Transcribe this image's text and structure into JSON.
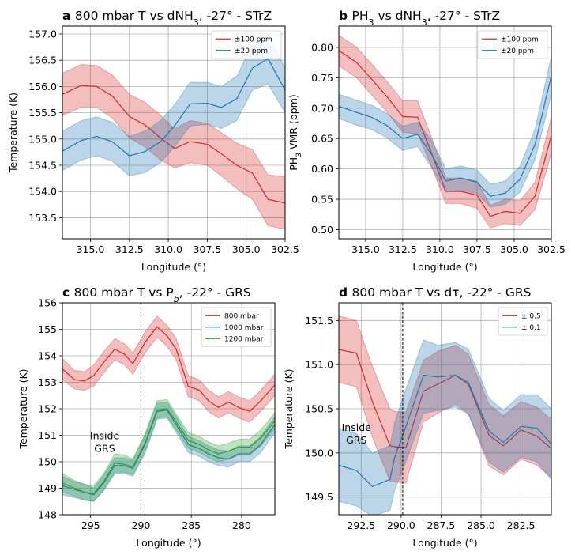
{
  "colors": {
    "red": "#d62728",
    "blue": "#1f77b4",
    "green": "#2ca02c",
    "grid": "#b0b0b0"
  },
  "chart_data": [
    {
      "type": "line",
      "panel": "a",
      "title_letter": "a",
      "title_parts": [
        {
          "t": "800 mbar T vs dNH"
        },
        {
          "t": "3",
          "sub": true
        },
        {
          "t": ", -27° - STrZ"
        }
      ],
      "xlabel": "Longitude (°)",
      "ylabel": "Temperature (K)",
      "xlim": [
        316.8,
        302.5
      ],
      "ylim": [
        153.1,
        157.15
      ],
      "xticks": [
        315.0,
        312.5,
        310.0,
        307.5,
        305.0,
        302.5
      ],
      "xtick_labels": [
        "315.0",
        "312.5",
        "310.0",
        "307.5",
        "305.0",
        "302.5"
      ],
      "yticks": [
        153.5,
        154.0,
        154.5,
        155.0,
        155.5,
        156.0,
        156.5,
        157.0
      ],
      "ytick_labels": [
        "153.5",
        "154.0",
        "154.5",
        "155.0",
        "155.5",
        "156.0",
        "156.5",
        "157.0"
      ],
      "legend": "upper right",
      "x": [
        316.8,
        315.6,
        314.6,
        313.6,
        312.5,
        311.5,
        310.5,
        309.6,
        308.6,
        307.5,
        306.6,
        305.6,
        304.6,
        303.6,
        302.5
      ],
      "series": [
        {
          "name": "±100 ppm",
          "color": "red",
          "y": [
            155.85,
            156.02,
            156.0,
            155.82,
            155.43,
            155.27,
            155.02,
            154.82,
            154.95,
            154.9,
            154.72,
            154.5,
            154.35,
            153.85,
            153.78
          ],
          "lo": [
            155.45,
            155.6,
            155.6,
            155.4,
            155.02,
            154.85,
            154.6,
            154.45,
            154.55,
            154.5,
            154.3,
            154.05,
            153.85,
            153.35,
            153.28
          ],
          "hi": [
            156.25,
            156.42,
            156.4,
            156.22,
            155.85,
            155.7,
            155.45,
            155.2,
            155.35,
            155.3,
            155.12,
            154.92,
            154.8,
            154.32,
            154.28
          ]
        },
        {
          "name": "±20 ppm",
          "color": "blue",
          "y": [
            154.77,
            154.97,
            155.05,
            154.95,
            154.68,
            154.76,
            154.95,
            155.25,
            155.67,
            155.68,
            155.6,
            155.77,
            156.35,
            156.53,
            155.93
          ],
          "lo": [
            154.4,
            154.6,
            154.68,
            154.58,
            154.3,
            154.36,
            154.55,
            154.85,
            155.25,
            155.28,
            155.2,
            155.35,
            155.93,
            156.05,
            155.5
          ],
          "hi": [
            155.15,
            155.35,
            155.42,
            155.32,
            155.05,
            155.15,
            155.35,
            155.65,
            156.08,
            156.08,
            156.0,
            156.2,
            156.8,
            157.0,
            156.35
          ]
        }
      ]
    },
    {
      "type": "line",
      "panel": "b",
      "title_letter": "b",
      "title_parts": [
        {
          "t": "PH"
        },
        {
          "t": "3",
          "sub": true
        },
        {
          "t": " vs dNH"
        },
        {
          "t": "3",
          "sub": true
        },
        {
          "t": ", -27° - STrZ"
        }
      ],
      "xlabel": "Longitude (°)",
      "ylabel_parts": [
        {
          "t": "PH"
        },
        {
          "t": "3",
          "sub": true
        },
        {
          "t": " VMR (ppm)"
        }
      ],
      "xlim": [
        316.8,
        302.5
      ],
      "ylim": [
        0.485,
        0.835
      ],
      "xticks": [
        315.0,
        312.5,
        310.0,
        307.5,
        305.0,
        302.5
      ],
      "xtick_labels": [
        "315.0",
        "312.5",
        "310.0",
        "307.5",
        "305.0",
        "302.5"
      ],
      "yticks": [
        0.5,
        0.55,
        0.6,
        0.65,
        0.7,
        0.75,
        0.8
      ],
      "ytick_labels": [
        "0.50",
        "0.55",
        "0.60",
        "0.65",
        "0.70",
        "0.75",
        "0.80"
      ],
      "legend": "upper right",
      "x": [
        316.8,
        315.6,
        314.6,
        313.6,
        312.5,
        311.5,
        310.5,
        309.6,
        308.6,
        307.5,
        306.6,
        305.6,
        304.6,
        303.6,
        302.5
      ],
      "series": [
        {
          "name": "±100 ppm",
          "color": "red",
          "y": [
            0.795,
            0.775,
            0.748,
            0.72,
            0.686,
            0.685,
            0.622,
            0.563,
            0.563,
            0.557,
            0.522,
            0.53,
            0.527,
            0.555,
            0.655
          ],
          "lo": [
            0.77,
            0.75,
            0.722,
            0.695,
            0.66,
            0.658,
            0.6,
            0.543,
            0.543,
            0.535,
            0.503,
            0.51,
            0.507,
            0.533,
            0.625
          ],
          "hi": [
            0.82,
            0.8,
            0.773,
            0.745,
            0.712,
            0.712,
            0.648,
            0.585,
            0.585,
            0.58,
            0.54,
            0.55,
            0.548,
            0.578,
            0.685
          ]
        },
        {
          "name": "±20 ppm",
          "color": "blue",
          "y": [
            0.703,
            0.693,
            0.685,
            0.672,
            0.65,
            0.657,
            0.622,
            0.58,
            0.585,
            0.578,
            0.555,
            0.56,
            0.583,
            0.64,
            0.753
          ],
          "lo": [
            0.683,
            0.672,
            0.665,
            0.652,
            0.63,
            0.637,
            0.6,
            0.562,
            0.565,
            0.56,
            0.537,
            0.542,
            0.562,
            0.615,
            0.723
          ],
          "hi": [
            0.723,
            0.713,
            0.705,
            0.692,
            0.67,
            0.677,
            0.645,
            0.6,
            0.605,
            0.598,
            0.575,
            0.58,
            0.605,
            0.665,
            0.785
          ]
        }
      ]
    },
    {
      "type": "line",
      "panel": "c",
      "title_letter": "c",
      "title_parts": [
        {
          "t": "800 mbar T vs P"
        },
        {
          "t": "b",
          "sub": true,
          "italic": true
        },
        {
          "t": ", -22° - GRS"
        }
      ],
      "xlabel": "Longitude (°)",
      "ylabel": "Temperature (K)",
      "xlim": [
        297.8,
        276.7
      ],
      "ylim": [
        148,
        156
      ],
      "xticks": [
        295,
        290,
        285,
        280
      ],
      "xtick_labels": [
        "295",
        "290",
        "285",
        "280"
      ],
      "yticks": [
        148,
        149,
        150,
        151,
        152,
        153,
        154,
        155,
        156
      ],
      "ytick_labels": [
        "148",
        "149",
        "150",
        "151",
        "152",
        "153",
        "154",
        "155",
        "156"
      ],
      "legend": "upper right",
      "vline": 290.0,
      "annotation": {
        "lines": [
          "Inside",
          "GRS"
        ],
        "x": 293.6,
        "y": 150.85
      },
      "x": [
        297.8,
        296.6,
        295.6,
        294.7,
        293.7,
        292.6,
        291.6,
        290.8,
        289.6,
        288.4,
        287.4,
        286.5,
        285.3,
        284.2,
        283.3,
        282.3,
        281.3,
        280.3,
        279.2,
        278.1,
        276.7
      ],
      "series": [
        {
          "name": "800 mbar",
          "color": "red",
          "y": [
            153.5,
            153.1,
            153.05,
            153.25,
            153.75,
            154.25,
            154.05,
            153.7,
            154.5,
            155.1,
            154.75,
            154.25,
            152.85,
            152.7,
            152.3,
            152.05,
            152.25,
            152.05,
            151.9,
            152.3,
            152.9
          ],
          "lo": [
            153.1,
            152.75,
            152.7,
            152.85,
            153.35,
            153.85,
            153.65,
            153.3,
            154.1,
            154.7,
            154.35,
            153.85,
            152.45,
            152.3,
            151.9,
            151.65,
            151.85,
            151.65,
            151.5,
            151.9,
            152.5
          ],
          "hi": [
            153.9,
            153.45,
            153.4,
            153.65,
            154.15,
            154.65,
            154.45,
            154.1,
            154.9,
            155.5,
            155.15,
            154.65,
            153.25,
            153.1,
            152.7,
            152.45,
            152.65,
            152.45,
            152.3,
            152.7,
            153.3
          ]
        },
        {
          "name": "1000 mbar",
          "color": "blue",
          "y": [
            149.1,
            148.95,
            148.85,
            148.75,
            149.2,
            149.85,
            149.85,
            149.75,
            150.65,
            151.9,
            151.95,
            151.4,
            150.65,
            150.5,
            150.3,
            150.15,
            150.1,
            150.3,
            150.3,
            150.65,
            151.4
          ],
          "lo": [
            148.75,
            148.65,
            148.55,
            148.5,
            148.9,
            149.55,
            149.55,
            149.45,
            150.3,
            151.6,
            151.65,
            151.1,
            150.35,
            150.2,
            150.0,
            149.85,
            149.8,
            150.0,
            150.0,
            150.35,
            151.1
          ],
          "hi": [
            149.45,
            149.25,
            149.15,
            149.0,
            149.5,
            150.15,
            150.15,
            150.05,
            151.0,
            152.2,
            152.25,
            151.7,
            150.95,
            150.8,
            150.6,
            150.45,
            150.4,
            150.6,
            150.6,
            150.95,
            151.7
          ]
        },
        {
          "name": "1200 mbar",
          "color": "green",
          "y": [
            149.2,
            149.0,
            148.85,
            148.8,
            149.25,
            149.95,
            149.9,
            149.8,
            150.7,
            151.95,
            152.0,
            151.5,
            150.8,
            150.65,
            150.45,
            150.3,
            150.4,
            150.55,
            150.55,
            150.9,
            151.55
          ],
          "lo": [
            148.85,
            148.7,
            148.55,
            148.5,
            148.95,
            149.6,
            149.6,
            149.5,
            150.4,
            151.65,
            151.7,
            151.2,
            150.5,
            150.35,
            150.15,
            150.0,
            150.1,
            150.25,
            150.25,
            150.6,
            151.25
          ],
          "hi": [
            149.55,
            149.3,
            149.15,
            149.1,
            149.55,
            150.3,
            150.25,
            150.1,
            151.05,
            152.3,
            152.35,
            151.8,
            151.1,
            150.95,
            150.75,
            150.6,
            150.7,
            150.85,
            150.85,
            151.2,
            151.85
          ]
        }
      ]
    },
    {
      "type": "line",
      "panel": "d",
      "title_letter": "d",
      "title_parts": [
        {
          "t": "800 mbar T vs d"
        },
        {
          "t": "τ"
        },
        {
          "t": ", -22° - GRS"
        }
      ],
      "xlabel": "Longitude (°)",
      "ylabel": "Temperature (K)",
      "xlim": [
        293.9,
        280.6
      ],
      "ylim": [
        149.3,
        151.7
      ],
      "xticks": [
        292.5,
        290.0,
        287.5,
        285.0,
        282.5
      ],
      "xtick_labels": [
        "292.5",
        "290.0",
        "287.5",
        "285.0",
        "282.5"
      ],
      "yticks": [
        149.5,
        150.0,
        150.5,
        151.0,
        151.5
      ],
      "ytick_labels": [
        "149.5",
        "150.0",
        "150.5",
        "151.0",
        "151.5"
      ],
      "legend": "upper right",
      "vline": 289.9,
      "annotation": {
        "lines": [
          "Inside",
          "GRS"
        ],
        "x": 292.8,
        "y": 150.25
      },
      "x": [
        293.9,
        292.8,
        291.8,
        290.7,
        290.4,
        289.7,
        288.6,
        287.7,
        286.6,
        285.8,
        284.5,
        283.6,
        282.5,
        281.5,
        280.6
      ],
      "series": [
        {
          "name": "± 0.5",
          "color": "red",
          "y": [
            151.17,
            151.13,
            150.58,
            150.08,
            150.07,
            150.06,
            150.7,
            150.78,
            150.88,
            150.78,
            150.2,
            150.08,
            150.26,
            150.19,
            150.05
          ],
          "lo": [
            150.8,
            150.75,
            150.18,
            149.68,
            149.67,
            149.66,
            150.35,
            150.45,
            150.55,
            150.45,
            149.85,
            149.75,
            149.93,
            149.86,
            149.72
          ],
          "hi": [
            151.55,
            151.5,
            150.98,
            150.5,
            150.47,
            150.46,
            151.05,
            151.15,
            151.22,
            151.12,
            150.55,
            150.42,
            150.58,
            150.52,
            150.38
          ]
        },
        {
          "name": "± 0.1",
          "color": "blue",
          "y": [
            149.86,
            149.8,
            149.62,
            149.7,
            149.95,
            150.3,
            150.88,
            150.86,
            150.88,
            150.8,
            150.25,
            150.12,
            150.3,
            150.28,
            150.1
          ],
          "lo": [
            149.45,
            149.4,
            149.28,
            149.35,
            149.58,
            149.9,
            150.45,
            150.48,
            150.52,
            150.44,
            149.9,
            149.78,
            149.95,
            149.9,
            149.7
          ],
          "hi": [
            150.28,
            150.22,
            150.0,
            150.08,
            150.35,
            150.72,
            151.28,
            151.22,
            151.25,
            151.18,
            150.62,
            150.48,
            150.66,
            150.66,
            150.5
          ]
        }
      ]
    }
  ]
}
